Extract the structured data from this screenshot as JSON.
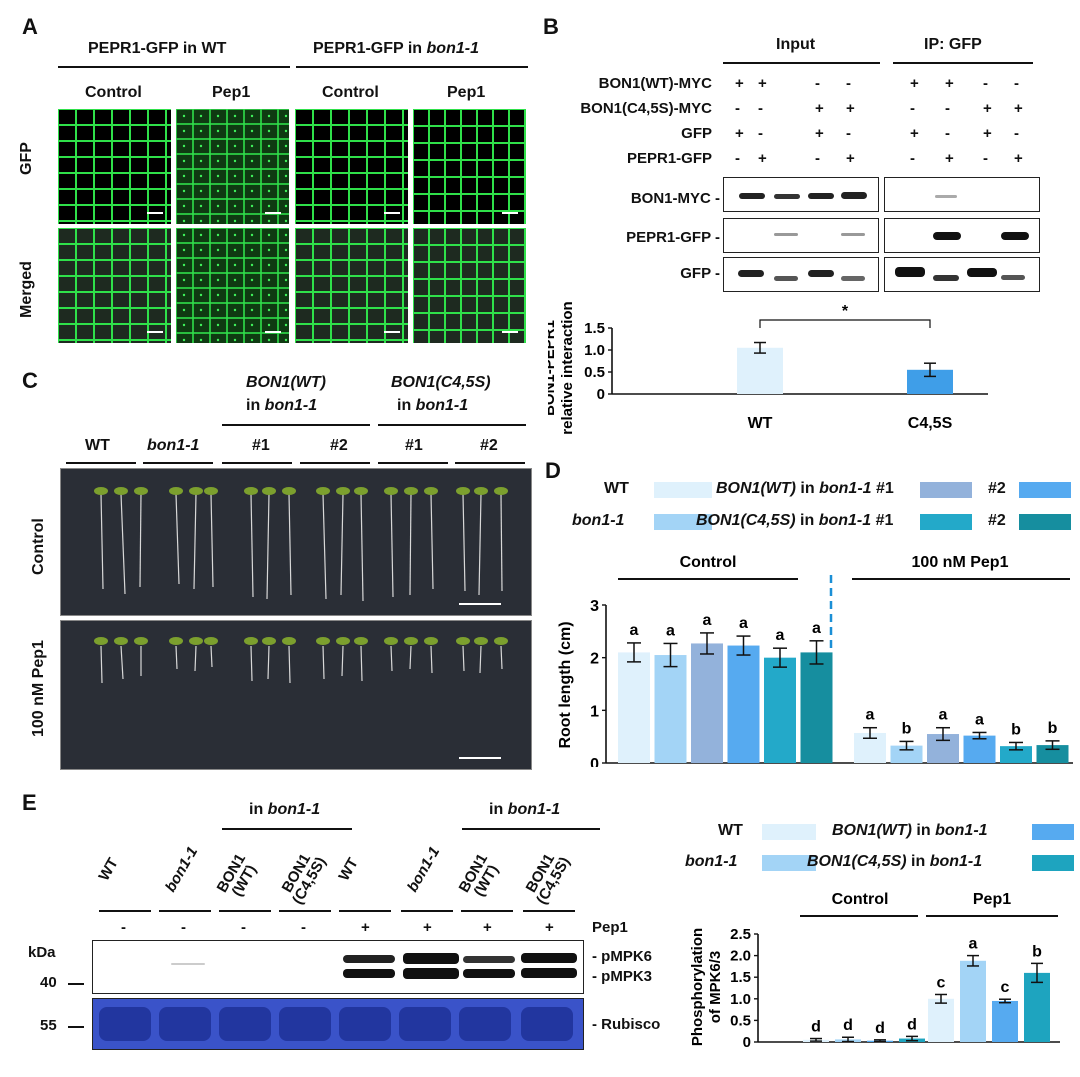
{
  "panelA": {
    "letter": "A",
    "group1_title": "PEPR1-GFP in WT",
    "group2_prefix": "PEPR1-GFP in ",
    "group2_italic": "bon1-1",
    "cols": [
      "Control",
      "Pep1",
      "Control",
      "Pep1"
    ],
    "rows": [
      "GFP",
      "Merged"
    ]
  },
  "panelB": {
    "letter": "B",
    "input_label": "Input",
    "ip_label": "IP: GFP",
    "row_labels": [
      "BON1(WT)-MYC",
      "BON1(C4,5S)-MYC",
      "GFP",
      "PEPR1-GFP"
    ],
    "signs": [
      [
        "+",
        "+",
        "-",
        "-",
        "+",
        "+",
        "-",
        "-"
      ],
      [
        "-",
        "-",
        "+",
        "+",
        "-",
        "-",
        "+",
        "+"
      ],
      [
        "+",
        "-",
        "+",
        "-",
        "+",
        "-",
        "+",
        "-"
      ],
      [
        "-",
        "+",
        "-",
        "+",
        "-",
        "+",
        "-",
        "+"
      ]
    ],
    "blot_labels": [
      "BON1-MYC -",
      "PEPR1-GFP -",
      "GFP -"
    ],
    "significance": "*"
  },
  "panelC": {
    "letter": "C",
    "group1_line1": "BON1(WT)",
    "group1_line2_prefix": "in ",
    "group1_line2_italic": "bon1-1",
    "group2_line1": "BON1(C4,5S)",
    "group2_line2_prefix": "in ",
    "group2_line2_italic": "bon1-1",
    "genotypes": [
      "WT",
      "bon1-1",
      "#1",
      "#2",
      "#1",
      "#2"
    ],
    "rows": [
      "Control",
      "100 nM Pep1"
    ]
  },
  "panelD": {
    "letter": "D",
    "legend": {
      "wt": "WT",
      "bon": "bon1-1",
      "bwt_italic": "BON1(WT)",
      "bwt_mid": " in ",
      "bwt_italic2": "bon1-1",
      "bwt_end": " #1",
      "bcs_italic": "BON1(C4,5S)",
      "bcs_mid": " in ",
      "bcs_italic2": "bon1-1",
      "bcs_end": " #1",
      "n2": "#2"
    },
    "group_labels": [
      "Control",
      "100 nM Pep1"
    ]
  },
  "panelE": {
    "letter": "E",
    "in_prefix": "in ",
    "in_italic": "bon1-1",
    "lanes": [
      "WT",
      "bon1-1",
      "BON1\n(WT)",
      "BON1\n(C4,5S)",
      "WT",
      "bon1-1",
      "BON1\n(WT)",
      "BON1\n(C4,5S)"
    ],
    "pep1_label": "Pep1",
    "pep1_signs": [
      "-",
      "-",
      "-",
      "-",
      "+",
      "+",
      "+",
      "+"
    ],
    "kda_label": "kDa",
    "marker40": "40",
    "marker55": "55",
    "band_labels": [
      "- pMPK6",
      "- pMPK3",
      "- Rubisco"
    ],
    "legend": {
      "wt": "WT",
      "bon": "bon1-1",
      "bwt_italic": "BON1(WT)",
      "bwt_mid": " in ",
      "bwt_italic2": "bon1-1",
      "bcs_italic": "BON1(C4,5S)",
      "bcs_mid": " in ",
      "bcs_italic2": "bon1-1"
    },
    "group_labels": [
      "Control",
      "Pep1"
    ]
  },
  "chart_data": [
    {
      "id": "B-chart",
      "type": "bar",
      "categories": [
        "WT",
        "C4,5S"
      ],
      "values": [
        1.05,
        0.55
      ],
      "errors": [
        0.12,
        0.15
      ],
      "ylabel": "BON1-PEPR1 relative interaction",
      "ylim": [
        0,
        1.5
      ],
      "yticks": [
        "0",
        "0.5",
        "1.0",
        "1.5"
      ],
      "colors": [
        "#dff1fc",
        "#3f9ee8"
      ],
      "significance": "*"
    },
    {
      "id": "D-chart",
      "type": "bar",
      "groups": [
        "Control",
        "100 nM Pep1"
      ],
      "series": [
        {
          "name": "WT",
          "color": "#dff1fc",
          "values": [
            2.1,
            0.57
          ],
          "errors": [
            0.18,
            0.1
          ],
          "letters": [
            "a",
            "a"
          ]
        },
        {
          "name": "bon1-1",
          "color": "#a3d4f6",
          "values": [
            2.05,
            0.33
          ],
          "errors": [
            0.22,
            0.08
          ],
          "letters": [
            "a",
            "b"
          ]
        },
        {
          "name": "BON1(WT) in bon1-1 #1",
          "color": "#93b2db",
          "values": [
            2.27,
            0.55
          ],
          "errors": [
            0.2,
            0.12
          ],
          "letters": [
            "a",
            "a"
          ]
        },
        {
          "name": "#2",
          "color": "#56aaf0",
          "values": [
            2.23,
            0.52
          ],
          "errors": [
            0.18,
            0.06
          ],
          "letters": [
            "a",
            "a"
          ]
        },
        {
          "name": "BON1(C4,5S) in bon1-1 #1",
          "color": "#23a9c9",
          "values": [
            2.0,
            0.32
          ],
          "errors": [
            0.18,
            0.07
          ],
          "letters": [
            "a",
            "b"
          ]
        },
        {
          "name": "#2",
          "color": "#168e9f",
          "values": [
            2.1,
            0.34
          ],
          "errors": [
            0.22,
            0.08
          ],
          "letters": [
            "a",
            "b"
          ]
        }
      ],
      "ylabel": "Root length (cm)",
      "ylim": [
        0,
        3
      ],
      "yticks": [
        "0",
        "1",
        "2",
        "3"
      ]
    },
    {
      "id": "E-chart",
      "type": "bar",
      "groups": [
        "Control",
        "Pep1"
      ],
      "series": [
        {
          "name": "WT",
          "color": "#dff1fc",
          "values": [
            0.05,
            1.0
          ],
          "errors": [
            0.03,
            0.1
          ],
          "letters": [
            "d",
            "c"
          ]
        },
        {
          "name": "bon1-1",
          "color": "#a3d4f6",
          "values": [
            0.06,
            1.88
          ],
          "errors": [
            0.05,
            0.12
          ],
          "letters": [
            "d",
            "a"
          ]
        },
        {
          "name": "BON1(WT) in bon1-1",
          "color": "#56aaf0",
          "values": [
            0.03,
            0.95
          ],
          "errors": [
            0.02,
            0.04
          ],
          "letters": [
            "d",
            "c"
          ]
        },
        {
          "name": "BON1(C4,5S) in bon1-1",
          "color": "#1ea4bf",
          "values": [
            0.08,
            1.6
          ],
          "errors": [
            0.05,
            0.22
          ],
          "letters": [
            "d",
            "b"
          ]
        }
      ],
      "ylabel": "Phosphorylation of MPK6/3",
      "ylim": [
        0,
        2.5
      ],
      "yticks": [
        "0",
        "0.5",
        "1.0",
        "1.5",
        "2.0",
        "2.5"
      ]
    }
  ]
}
